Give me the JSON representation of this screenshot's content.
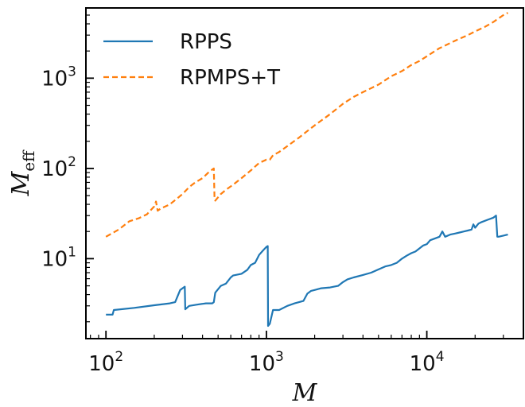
{
  "chart_data": {
    "type": "line",
    "xlabel": "M",
    "ylabel": "M",
    "ylabel_subscript": "eff",
    "xscale": "log",
    "yscale": "log",
    "xlim": [
      75,
      40000
    ],
    "ylim": [
      1.3,
      6000
    ],
    "x_ticks": [
      {
        "value": 100,
        "base": "10",
        "exp": "2"
      },
      {
        "value": 1000,
        "base": "10",
        "exp": "3"
      },
      {
        "value": 10000,
        "base": "10",
        "exp": "4"
      }
    ],
    "y_ticks": [
      {
        "value": 10,
        "base": "10",
        "exp": "1"
      },
      {
        "value": 100,
        "base": "10",
        "exp": "2"
      },
      {
        "value": 1000,
        "base": "10",
        "exp": "3"
      }
    ],
    "grid": false,
    "legend": "top-left",
    "series": [
      {
        "name": "RPPS",
        "color": "#1f77b4",
        "style": "solid",
        "x": [
          100,
          110,
          112,
          150,
          200,
          250,
          270,
          290,
          305,
          310,
          312,
          330,
          370,
          420,
          460,
          470,
          480,
          520,
          560,
          600,
          620,
          700,
          760,
          800,
          850,
          900,
          960,
          1000,
          1020,
          1025,
          1050,
          1100,
          1200,
          1350,
          1500,
          1700,
          1800,
          1900,
          2000,
          2200,
          2500,
          2800,
          3000,
          3200,
          3500,
          4000,
          4500,
          5000,
          5500,
          6000,
          6500,
          7000,
          7500,
          8000,
          8500,
          9000,
          9500,
          10000,
          10500,
          11000,
          12000,
          12500,
          13000,
          14000,
          15000,
          16000,
          17000,
          18000,
          19000,
          19500,
          20000,
          21000,
          22000,
          24000,
          26000,
          27000,
          27500,
          28000,
          30000,
          32000
        ],
        "y": [
          2.4,
          2.4,
          2.7,
          2.85,
          3.05,
          3.2,
          3.3,
          4.5,
          4.8,
          4.9,
          2.75,
          3.0,
          3.1,
          3.2,
          3.2,
          3.3,
          4.2,
          5.0,
          5.3,
          6.2,
          6.5,
          6.8,
          7.5,
          8.5,
          9.0,
          11.0,
          12.5,
          13.5,
          13.8,
          1.8,
          1.9,
          2.7,
          2.7,
          3.0,
          3.2,
          3.4,
          4.1,
          4.4,
          4.5,
          4.7,
          4.8,
          5.0,
          5.5,
          5.9,
          6.2,
          6.6,
          7.0,
          7.6,
          8.2,
          8.5,
          9.0,
          10.0,
          10.8,
          11.5,
          12.0,
          13.0,
          14.0,
          14.5,
          16.0,
          16.5,
          17.5,
          20.0,
          17.5,
          18.5,
          19.0,
          19.5,
          20.0,
          20.5,
          21.0,
          24.0,
          22.0,
          24.5,
          25.5,
          27.0,
          28.5,
          30.0,
          17.5,
          17.5,
          18.0,
          18.5
        ]
      },
      {
        "name": "RPMPS+T",
        "color": "#ff7f0e",
        "style": "dashed",
        "x": [
          100,
          120,
          140,
          160,
          180,
          200,
          205,
          210,
          220,
          250,
          280,
          300,
          330,
          360,
          400,
          440,
          470,
          475,
          480,
          520,
          560,
          620,
          700,
          800,
          900,
          1000,
          1050,
          1100,
          1200,
          1400,
          1600,
          1800,
          2000,
          2500,
          3000,
          3500,
          4000,
          5000,
          6000,
          7000,
          8000,
          9000,
          10000,
          11000,
          12000,
          13000,
          15000,
          18000,
          20000,
          23000,
          26000,
          28000,
          30000,
          32000
        ],
        "y": [
          17.5,
          21,
          26,
          28,
          31,
          38,
          43,
          34,
          36,
          40,
          47,
          52,
          62,
          70,
          78,
          92,
          100,
          45,
          44,
          52,
          58,
          66,
          78,
          95,
          115,
          125,
          125,
          140,
          152,
          185,
          220,
          260,
          300,
          400,
          520,
          620,
          700,
          850,
          1050,
          1200,
          1400,
          1550,
          1750,
          1950,
          2150,
          2300,
          2600,
          3000,
          3300,
          3700,
          4200,
          4600,
          5000,
          5300
        ]
      }
    ]
  }
}
